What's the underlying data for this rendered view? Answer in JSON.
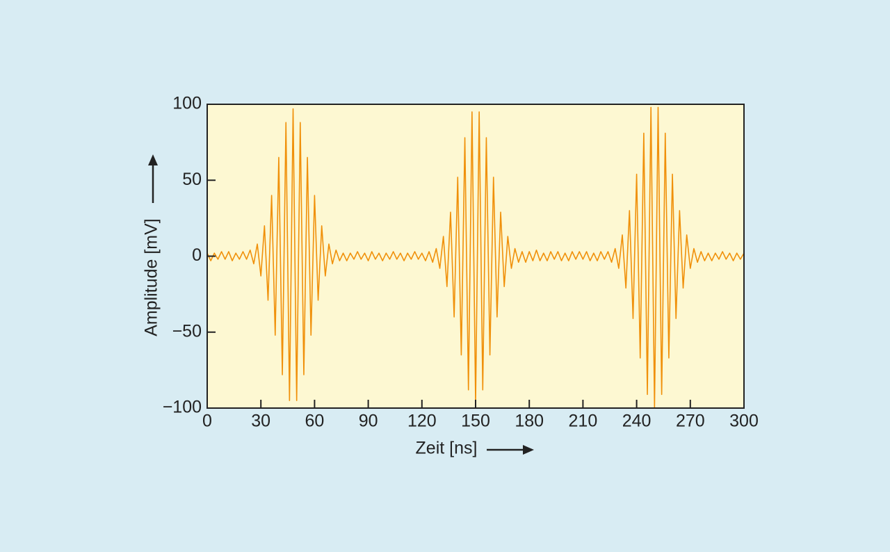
{
  "chart_data": {
    "type": "line",
    "xlabel": "Zeit [ns]",
    "ylabel": "Amplitude [mV]",
    "xlim": [
      0,
      300
    ],
    "xticks": [
      0,
      30,
      60,
      90,
      120,
      150,
      180,
      210,
      240,
      270,
      300
    ],
    "ylim": [
      -100,
      100
    ],
    "yticks": [
      {
        "value": -100,
        "label": "−100"
      },
      {
        "value": -50,
        "label": "−50"
      },
      0,
      50,
      100
    ],
    "series": [
      {
        "color": "#f0900a",
        "x": [
          0,
          2,
          4,
          6,
          8,
          10,
          12,
          14,
          16,
          18,
          20,
          22,
          24,
          26,
          28,
          30,
          32,
          34,
          36,
          38,
          40,
          42,
          44,
          46,
          48,
          50,
          52,
          54,
          56,
          58,
          60,
          62,
          64,
          66,
          68,
          70,
          72,
          74,
          76,
          78,
          80,
          82,
          84,
          86,
          88,
          90,
          92,
          94,
          96,
          98,
          100,
          102,
          104,
          106,
          108,
          110,
          112,
          114,
          116,
          118,
          120,
          122,
          124,
          126,
          128,
          130,
          132,
          134,
          136,
          138,
          140,
          142,
          144,
          146,
          148,
          150,
          152,
          154,
          156,
          158,
          160,
          162,
          164,
          166,
          168,
          170,
          172,
          174,
          176,
          178,
          180,
          182,
          184,
          186,
          188,
          190,
          192,
          194,
          196,
          198,
          200,
          202,
          204,
          206,
          208,
          210,
          212,
          214,
          216,
          218,
          220,
          222,
          224,
          226,
          228,
          230,
          232,
          234,
          236,
          238,
          240,
          242,
          244,
          246,
          248,
          250,
          252,
          254,
          256,
          258,
          260,
          262,
          264,
          266,
          268,
          270,
          272,
          274,
          276,
          278,
          280,
          282,
          284,
          286,
          288,
          290,
          292,
          294,
          296,
          298,
          300
        ],
        "values": [
          2,
          -3,
          2,
          -2,
          3,
          -2,
          3,
          -3,
          2,
          -2,
          3,
          -2,
          4,
          -5,
          8,
          -13,
          20,
          -29,
          40,
          -52,
          65,
          -78,
          88,
          -95,
          97,
          -95,
          88,
          -78,
          65,
          -52,
          40,
          -29,
          20,
          -13,
          8,
          -5,
          4,
          -3,
          2,
          -3,
          2,
          -2,
          3,
          -2,
          2,
          -3,
          3,
          -2,
          2,
          -3,
          2,
          -2,
          3,
          -2,
          2,
          -3,
          2,
          -2,
          3,
          -2,
          2,
          -3,
          3,
          -4,
          5,
          -8,
          13,
          -20,
          29,
          -40,
          52,
          -65,
          78,
          -88,
          95,
          -97,
          95,
          -88,
          78,
          -65,
          52,
          -40,
          29,
          -20,
          13,
          -8,
          5,
          -4,
          3,
          -4,
          3,
          -3,
          4,
          -3,
          2,
          -3,
          3,
          -2,
          3,
          -3,
          2,
          -3,
          3,
          -2,
          3,
          -2,
          3,
          -3,
          2,
          -3,
          3,
          -2,
          3,
          -4,
          5,
          -8,
          14,
          -21,
          30,
          -41,
          54,
          -67,
          81,
          -91,
          98,
          -100,
          98,
          -91,
          81,
          -67,
          54,
          -41,
          30,
          -21,
          14,
          -8,
          5,
          -4,
          3,
          -3,
          2,
          -3,
          2,
          -2,
          3,
          -2,
          2,
          -3,
          2,
          -2,
          2
        ]
      }
    ]
  }
}
